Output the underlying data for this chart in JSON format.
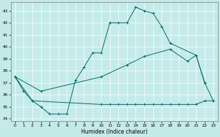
{
  "xlabel": "Humidex (Indice chaleur)",
  "xlim": [
    -0.5,
    23.5
  ],
  "ylim": [
    33.8,
    43.7
  ],
  "yticks": [
    34,
    35,
    36,
    37,
    38,
    39,
    40,
    41,
    42,
    43
  ],
  "xticks": [
    0,
    1,
    2,
    3,
    4,
    5,
    6,
    7,
    8,
    9,
    10,
    11,
    12,
    13,
    14,
    15,
    16,
    17,
    18,
    19,
    20,
    21,
    22,
    23
  ],
  "bg_color": "#c5eaea",
  "line_color": "#006666",
  "grid_color": "#ffffff",
  "line1_x": [
    0,
    1,
    2,
    3,
    4,
    5,
    6,
    7,
    8,
    9,
    10,
    11,
    12,
    13,
    14,
    15,
    16,
    17,
    18,
    21,
    22
  ],
  "line1_y": [
    37.5,
    36.3,
    35.5,
    35.0,
    34.4,
    34.4,
    34.4,
    37.2,
    38.3,
    39.5,
    39.5,
    42.0,
    42.0,
    42.0,
    43.3,
    43.0,
    42.8,
    41.7,
    40.3,
    39.3,
    37.0
  ],
  "line2_x": [
    0,
    2,
    10,
    11,
    12,
    13,
    14,
    15,
    16,
    17,
    18,
    19,
    20,
    21,
    22,
    23
  ],
  "line2_y": [
    37.5,
    35.5,
    35.2,
    35.2,
    35.2,
    35.2,
    35.2,
    35.2,
    35.2,
    35.2,
    35.2,
    35.2,
    35.2,
    35.2,
    35.5,
    35.5
  ],
  "line3_x": [
    0,
    3,
    10,
    13,
    15,
    18,
    20,
    21,
    22,
    23
  ],
  "line3_y": [
    37.5,
    36.3,
    37.5,
    38.5,
    39.2,
    39.8,
    38.8,
    39.3,
    37.0,
    35.5
  ]
}
